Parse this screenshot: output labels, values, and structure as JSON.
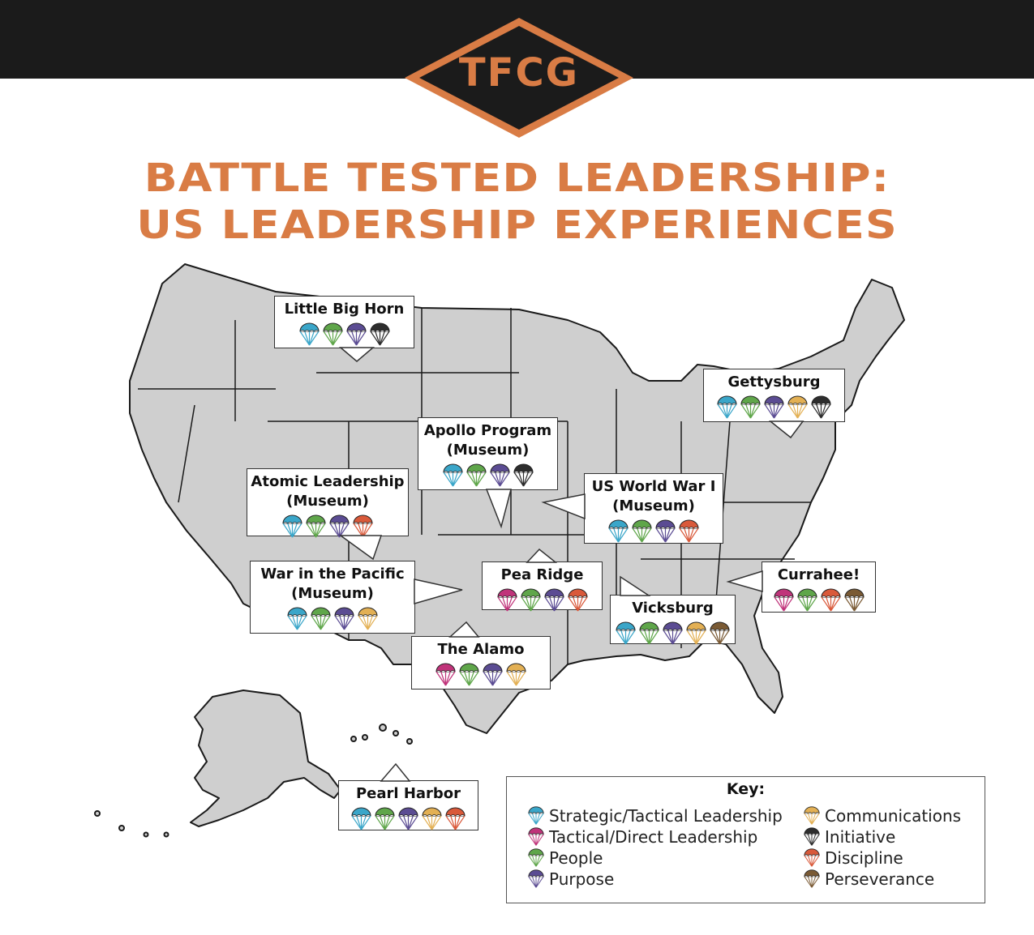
{
  "header": {
    "logo_text": "TFCG"
  },
  "title": {
    "line1": "BATTLE TESTED LEADERSHIP:",
    "line2": "US LEADERSHIP EXPERIENCES"
  },
  "colors": {
    "brand_orange": "#d97c45",
    "map_fill": "#cfcfcf",
    "strategic": "#3aa6c9",
    "tactical": "#c0337a",
    "people": "#5fa64a",
    "purpose": "#5b4c93",
    "communications": "#e3b054",
    "initiative": "#2d2d2d",
    "discipline": "#d9593a",
    "perseverance": "#7a5a34"
  },
  "sites": [
    {
      "lines": [
        "Little Big Horn"
      ],
      "icons": [
        "strategic",
        "people",
        "purpose",
        "initiative"
      ]
    },
    {
      "lines": [
        "Gettysburg"
      ],
      "icons": [
        "strategic",
        "people",
        "purpose",
        "communications",
        "initiative"
      ]
    },
    {
      "lines": [
        "Apollo Program",
        "(Museum)"
      ],
      "icons": [
        "strategic",
        "people",
        "purpose",
        "initiative"
      ]
    },
    {
      "lines": [
        "Atomic Leadership",
        "(Museum)"
      ],
      "icons": [
        "strategic",
        "people",
        "purpose",
        "discipline"
      ]
    },
    {
      "lines": [
        "US World War I",
        "(Museum)"
      ],
      "icons": [
        "strategic",
        "people",
        "purpose",
        "discipline"
      ]
    },
    {
      "lines": [
        "War in the Pacific",
        "(Museum)"
      ],
      "icons": [
        "strategic",
        "people",
        "purpose",
        "communications"
      ]
    },
    {
      "lines": [
        "Pea Ridge"
      ],
      "icons": [
        "tactical",
        "people",
        "purpose",
        "discipline"
      ]
    },
    {
      "lines": [
        "Currahee!"
      ],
      "icons": [
        "tactical",
        "people",
        "discipline",
        "perseverance"
      ]
    },
    {
      "lines": [
        "Vicksburg"
      ],
      "icons": [
        "strategic",
        "people",
        "purpose",
        "communications",
        "perseverance"
      ]
    },
    {
      "lines": [
        "The Alamo"
      ],
      "icons": [
        "tactical",
        "people",
        "purpose",
        "communications"
      ]
    },
    {
      "lines": [
        "Pearl Harbor"
      ],
      "icons": [
        "strategic",
        "people",
        "purpose",
        "communications",
        "discipline"
      ]
    }
  ],
  "key": {
    "title": "Key:",
    "items": [
      {
        "label": "Strategic/Tactical Leadership",
        "icon": "strategic"
      },
      {
        "label": "Tactical/Direct Leadership",
        "icon": "tactical"
      },
      {
        "label": "People",
        "icon": "people"
      },
      {
        "label": "Purpose",
        "icon": "purpose"
      },
      {
        "label": "Communications",
        "icon": "communications"
      },
      {
        "label": "Initiative",
        "icon": "initiative"
      },
      {
        "label": "Discipline",
        "icon": "discipline"
      },
      {
        "label": "Perseverance",
        "icon": "perseverance"
      }
    ]
  }
}
